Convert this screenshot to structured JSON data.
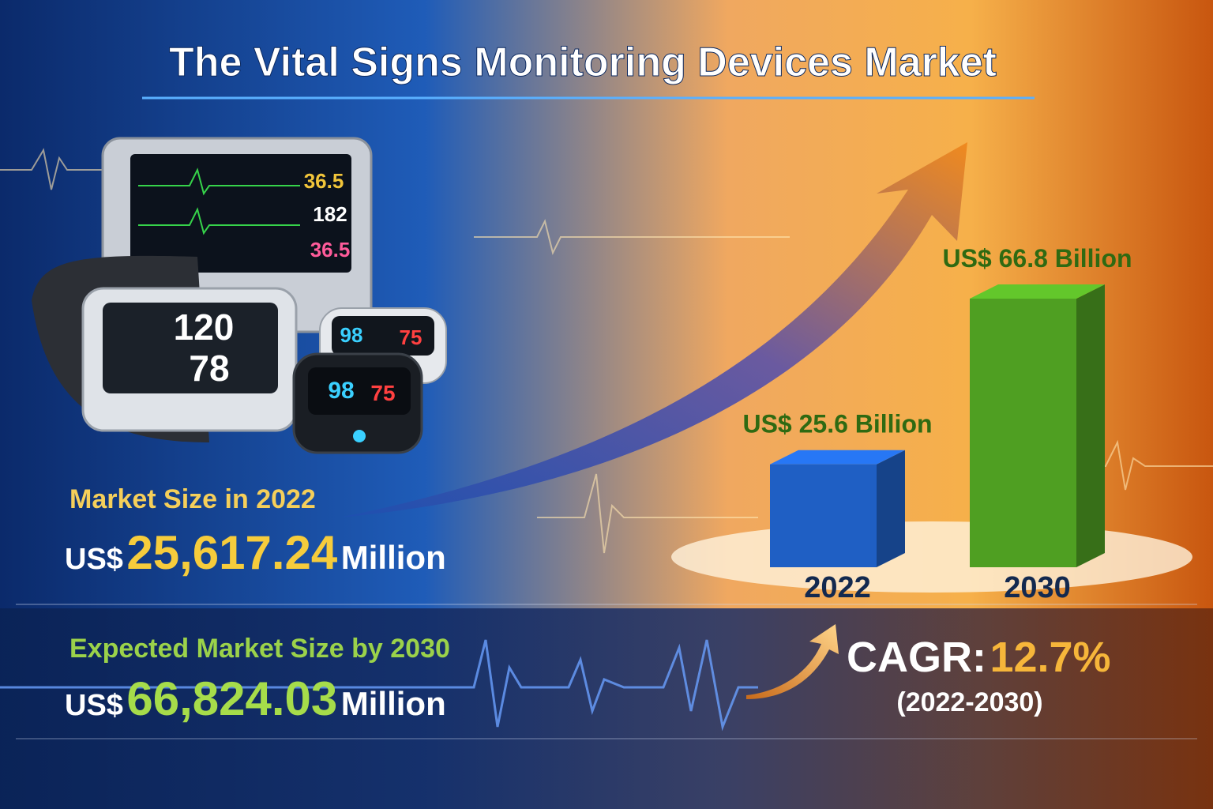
{
  "chart_data": {
    "type": "bar",
    "title": "The Vital Signs Monitoring Devices Market",
    "categories": [
      "2022",
      "2030"
    ],
    "values": [
      25.6,
      66.8
    ],
    "value_labels": [
      "US$ 25.6 Billion",
      "US$ 66.8 Billion"
    ],
    "colors": [
      "#1f5fc4",
      "#4f9f22"
    ]
  },
  "market_2022": {
    "label": "Market Size in 2022",
    "prefix": "US$",
    "amount": "25,617.24",
    "unit": "Million"
  },
  "market_2030": {
    "label": "Expected Market Size by 2030",
    "prefix": "US$",
    "amount": "66,824.03",
    "unit": "Million"
  },
  "cagr": {
    "label": "CAGR:",
    "value": "12.7%",
    "period": "(2022-2030)"
  },
  "devices": {
    "monitor": [
      "36.5",
      "182",
      "36.5"
    ],
    "blood_pressure": [
      "120",
      "78"
    ],
    "oximeter": [
      "98",
      "75"
    ]
  }
}
